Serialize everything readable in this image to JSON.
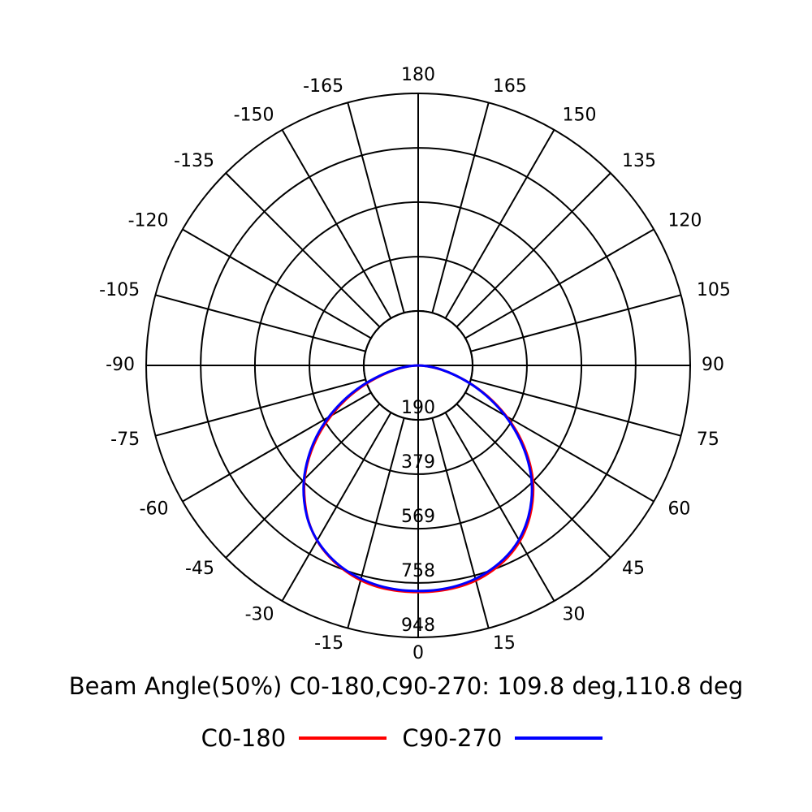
{
  "chart_data": {
    "type": "polar",
    "angle_labels": [
      "0",
      "15",
      "30",
      "45",
      "60",
      "75",
      "90",
      "105",
      "120",
      "135",
      "150",
      "165",
      "180",
      "-165",
      "-150",
      "-135",
      "-120",
      "-105",
      "-90",
      "-75",
      "-60",
      "-45",
      "-30",
      "-15"
    ],
    "angle_values": [
      0,
      15,
      30,
      45,
      60,
      75,
      90,
      105,
      120,
      135,
      150,
      165,
      180,
      -165,
      -150,
      -135,
      -120,
      -105,
      -90,
      -75,
      -60,
      -45,
      -30,
      -15
    ],
    "ring_labels": [
      "190",
      "379",
      "569",
      "758",
      "948"
    ],
    "ring_values": [
      190,
      379,
      569,
      758,
      948
    ],
    "rmax": 948,
    "series": [
      {
        "name": "C0-180",
        "color": "#ff0000",
        "angles": [
          -90,
          -85,
          -80,
          -75,
          -70,
          -65,
          -60,
          -55,
          -50,
          -45,
          -40,
          -35,
          -30,
          -25,
          -20,
          -15,
          -10,
          -5,
          0,
          5,
          10,
          15,
          20,
          25,
          30,
          35,
          40,
          45,
          50,
          55,
          60,
          65,
          70,
          75,
          80,
          85,
          90
        ],
        "values": [
          0,
          30,
          75,
          130,
          200,
          275,
          350,
          425,
          495,
          560,
          615,
          665,
          705,
          735,
          758,
          775,
          785,
          789,
          790,
          789,
          785,
          776,
          760,
          738,
          708,
          668,
          620,
          565,
          500,
          430,
          355,
          280,
          205,
          135,
          78,
          32,
          0
        ]
      },
      {
        "name": "C90-270",
        "color": "#0000ff",
        "angles": [
          -90,
          -85,
          -80,
          -75,
          -70,
          -65,
          -60,
          -55,
          -50,
          -45,
          -40,
          -35,
          -30,
          -25,
          -20,
          -15,
          -10,
          -5,
          0,
          5,
          10,
          15,
          20,
          25,
          30,
          35,
          40,
          45,
          50,
          55,
          60,
          65,
          70,
          75,
          80,
          85,
          90
        ],
        "values": [
          0,
          32,
          80,
          138,
          210,
          285,
          360,
          433,
          500,
          563,
          618,
          666,
          704,
          733,
          755,
          770,
          780,
          785,
          786,
          785,
          780,
          770,
          754,
          732,
          702,
          662,
          614,
          558,
          493,
          423,
          350,
          275,
          203,
          135,
          80,
          32,
          0
        ]
      }
    ]
  },
  "beam_text": "Beam Angle(50%) C0-180,C90-270: 109.8 deg,110.8 deg",
  "legend": [
    {
      "label": "C0-180",
      "color": "#ff0000"
    },
    {
      "label": "C90-270",
      "color": "#0000ff"
    }
  ]
}
